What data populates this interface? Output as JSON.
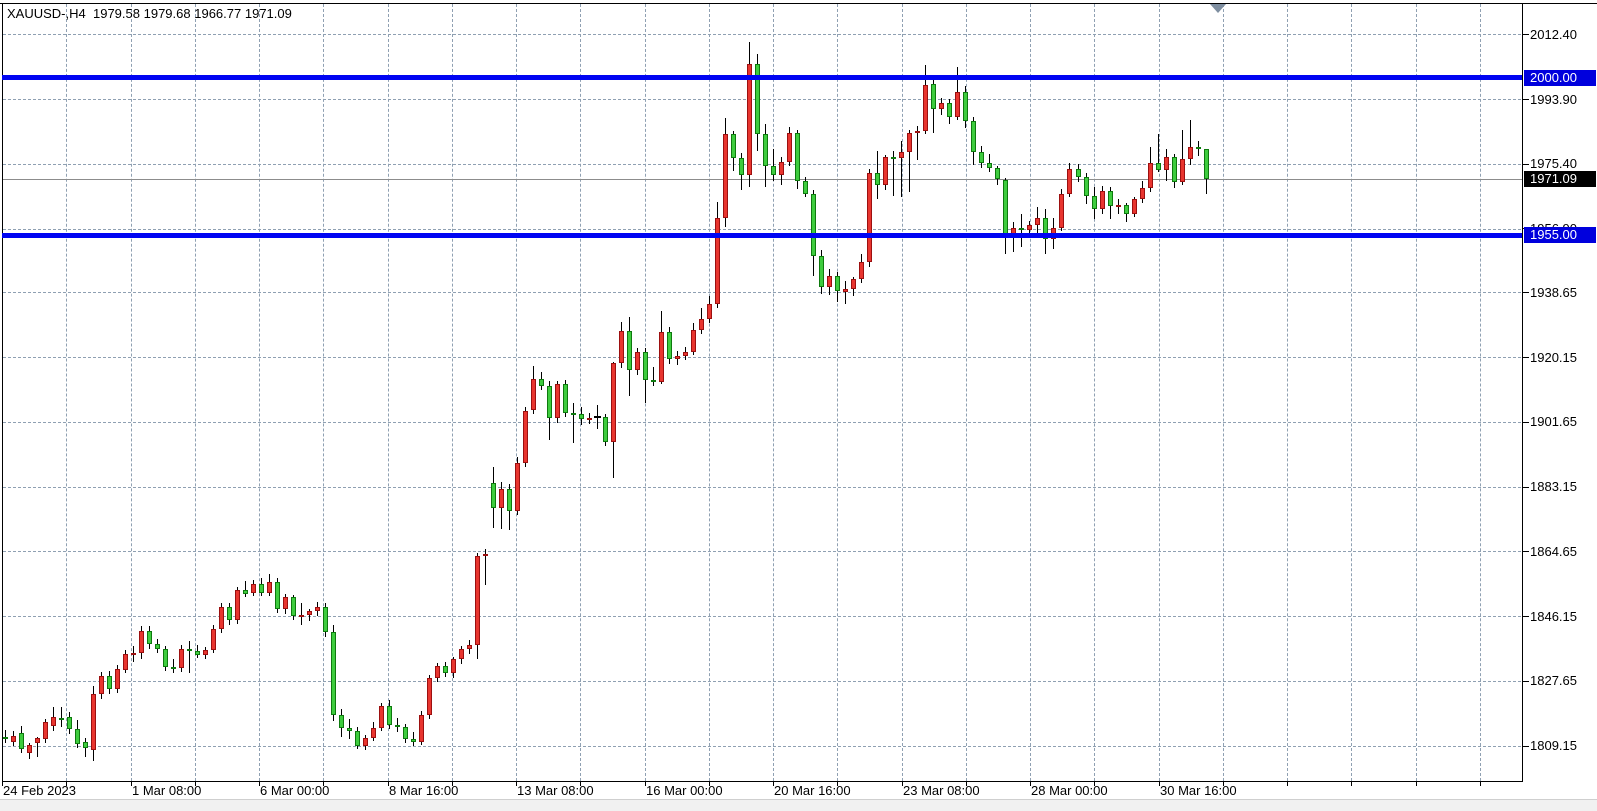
{
  "header": {
    "symbol_period": "XAUUSD-,H4",
    "open": "1979.58",
    "high": "1979.68",
    "low": "1966.77",
    "close": "1971.09"
  },
  "colors": {
    "background": "#ffffff",
    "bull_body": "#e8352f",
    "bull_border": "#9c1010",
    "bear_body": "#3ecc3e",
    "bear_border": "#0e7a0e",
    "wick": "#000000",
    "grid": "#8fa0b2",
    "level_line": "#0004f2",
    "level_chip_bg": "#0000dd",
    "current_chip_bg": "#000000",
    "current_line": "#8c8c8c",
    "axis_text": "#000000",
    "chip_text": "#ffffff",
    "shift_marker": "#7e8ea0"
  },
  "price_axis": {
    "ticks": [
      2012.4,
      1993.9,
      1975.4,
      1956.9,
      1938.65,
      1920.15,
      1901.65,
      1883.15,
      1864.65,
      1846.15,
      1827.65,
      1809.15
    ]
  },
  "time_axis": {
    "labels": [
      "24 Feb 2023",
      "1 Mar 08:00",
      "6 Mar 00:00",
      "8 Mar 16:00",
      "13 Mar 08:00",
      "16 Mar 00:00",
      "20 Mar 16:00",
      "23 Mar 08:00",
      "28 Mar 00:00",
      "30 Mar 16:00"
    ]
  },
  "levels": [
    {
      "price": 2000.0,
      "label": "2000.00"
    },
    {
      "price": 1955.0,
      "label": "1955.00"
    }
  ],
  "current": {
    "price": 1971.09,
    "label": "1971.09"
  },
  "chart_data": {
    "type": "candlestick",
    "title": "XAUUSD- H4",
    "xlabel": "",
    "ylabel": "",
    "ylim": [
      1799.0,
      2021.3
    ],
    "grid": "dashed",
    "x_tick_labels": [
      "24 Feb 2023",
      "1 Mar 08:00",
      "6 Mar 00:00",
      "8 Mar 16:00",
      "13 Mar 08:00",
      "16 Mar 00:00",
      "20 Mar 16:00",
      "23 Mar 08:00",
      "28 Mar 00:00",
      "30 Mar 16:00"
    ],
    "y_tick_values": [
      2012.4,
      1993.9,
      1975.4,
      1956.9,
      1938.65,
      1920.15,
      1901.65,
      1883.15,
      1864.65,
      1846.15,
      1827.65,
      1809.15
    ],
    "horizontal_levels": [
      2000.0,
      1955.0
    ],
    "last_price": 1971.09,
    "ohlc": [
      [
        1811.6,
        1813.7,
        1809.9,
        1811.2
      ],
      [
        1810.3,
        1813.4,
        1809.1,
        1812.0
      ],
      [
        1812.8,
        1814.8,
        1807.0,
        1808.2
      ],
      [
        1806.9,
        1810.0,
        1805.4,
        1809.4
      ],
      [
        1809.8,
        1811.6,
        1805.8,
        1811.2
      ],
      [
        1810.9,
        1816.9,
        1810.0,
        1815.8
      ],
      [
        1814.6,
        1820.1,
        1813.2,
        1817.2
      ],
      [
        1817.0,
        1820.1,
        1814.6,
        1816.4
      ],
      [
        1817.2,
        1818.9,
        1812.5,
        1813.9
      ],
      [
        1813.9,
        1816.6,
        1808.4,
        1809.6
      ],
      [
        1810.3,
        1811.2,
        1805.9,
        1808.5
      ],
      [
        1807.9,
        1826.1,
        1804.7,
        1823.8
      ],
      [
        1823.8,
        1830.2,
        1822.5,
        1829.1
      ],
      [
        1829.1,
        1830.5,
        1823.9,
        1825.2
      ],
      [
        1825.2,
        1832.2,
        1824.3,
        1831.0
      ],
      [
        1830.8,
        1836.5,
        1829.9,
        1835.3
      ],
      [
        1835.3,
        1837.6,
        1833.0,
        1835.7
      ],
      [
        1835.7,
        1843.2,
        1834.0,
        1842.0
      ],
      [
        1842.0,
        1843.4,
        1836.8,
        1838.2
      ],
      [
        1838.2,
        1839.5,
        1835.5,
        1836.7
      ],
      [
        1836.7,
        1837.5,
        1830.5,
        1831.7
      ],
      [
        1831.7,
        1834.0,
        1830.0,
        1831.2
      ],
      [
        1831.2,
        1837.8,
        1830.3,
        1836.7
      ],
      [
        1836.7,
        1839.1,
        1830.0,
        1836.2
      ],
      [
        1836.2,
        1837.8,
        1834.2,
        1835.0
      ],
      [
        1835.0,
        1837.3,
        1833.8,
        1836.5
      ],
      [
        1836.5,
        1843.6,
        1835.6,
        1842.5
      ],
      [
        1842.5,
        1849.8,
        1841.4,
        1848.7
      ],
      [
        1848.7,
        1849.9,
        1843.5,
        1844.9
      ],
      [
        1844.9,
        1854.4,
        1843.8,
        1853.5
      ],
      [
        1853.5,
        1856.1,
        1851.5,
        1852.6
      ],
      [
        1852.6,
        1856.4,
        1851.8,
        1855.4
      ],
      [
        1855.4,
        1857.0,
        1851.9,
        1852.8
      ],
      [
        1852.8,
        1858.2,
        1852.0,
        1855.9
      ],
      [
        1855.9,
        1857.0,
        1847.0,
        1848.1
      ],
      [
        1848.1,
        1852.6,
        1846.9,
        1851.6
      ],
      [
        1851.6,
        1852.3,
        1845.0,
        1846.1
      ],
      [
        1846.1,
        1849.9,
        1843.6,
        1846.6
      ],
      [
        1846.6,
        1848.3,
        1844.8,
        1847.5
      ],
      [
        1847.5,
        1850.2,
        1846.3,
        1848.8
      ],
      [
        1848.8,
        1849.9,
        1840.3,
        1841.5
      ],
      [
        1841.5,
        1843.5,
        1816.2,
        1818.0
      ],
      [
        1818.0,
        1819.6,
        1811.7,
        1814.1
      ],
      [
        1814.1,
        1816.9,
        1811.2,
        1813.4
      ],
      [
        1813.4,
        1814.4,
        1808.2,
        1808.9
      ],
      [
        1808.9,
        1812.2,
        1807.8,
        1811.3
      ],
      [
        1811.3,
        1816.0,
        1810.4,
        1814.2
      ],
      [
        1814.2,
        1821.3,
        1813.3,
        1820.4
      ],
      [
        1820.4,
        1822.3,
        1814.0,
        1815.1
      ],
      [
        1815.1,
        1817.0,
        1812.9,
        1814.5
      ],
      [
        1814.5,
        1815.2,
        1809.8,
        1811.0
      ],
      [
        1811.0,
        1813.0,
        1808.9,
        1810.2
      ],
      [
        1810.2,
        1819.0,
        1809.4,
        1817.9
      ],
      [
        1817.9,
        1829.3,
        1816.8,
        1828.6
      ],
      [
        1828.6,
        1832.8,
        1827.4,
        1831.9
      ],
      [
        1831.9,
        1833.0,
        1828.8,
        1829.8
      ],
      [
        1829.8,
        1834.6,
        1828.6,
        1833.8
      ],
      [
        1833.8,
        1837.5,
        1832.5,
        1836.7
      ],
      [
        1836.7,
        1839.4,
        1835.4,
        1837.8
      ],
      [
        1837.8,
        1864.2,
        1834.0,
        1863.2
      ],
      [
        1863.2,
        1865.3,
        1855.0,
        1864.0
      ],
      [
        1884.1,
        1888.9,
        1871.3,
        1877.0
      ],
      [
        1877.0,
        1884.6,
        1871.0,
        1882.4
      ],
      [
        1882.4,
        1883.8,
        1870.8,
        1876.3
      ],
      [
        1876.3,
        1891.7,
        1875.0,
        1890.0
      ],
      [
        1890.0,
        1906.0,
        1888.6,
        1904.9
      ],
      [
        1904.9,
        1917.5,
        1903.8,
        1913.8
      ],
      [
        1913.8,
        1915.9,
        1910.7,
        1911.9
      ],
      [
        1911.9,
        1913.2,
        1896.5,
        1902.7
      ],
      [
        1902.7,
        1913.4,
        1901.2,
        1912.5
      ],
      [
        1912.5,
        1913.6,
        1903.0,
        1904.3
      ],
      [
        1904.3,
        1907.0,
        1895.6,
        1903.9
      ],
      [
        1903.9,
        1905.9,
        1900.9,
        1902.4
      ],
      [
        1902.4,
        1904.3,
        1901.1,
        1902.8
      ],
      [
        1902.8,
        1906.6,
        1899.5,
        1903.0
      ],
      [
        1903.0,
        1904.0,
        1894.8,
        1896.0
      ],
      [
        1896.0,
        1918.9,
        1885.6,
        1918.4
      ],
      [
        1918.4,
        1930.3,
        1916.9,
        1927.5
      ],
      [
        1927.5,
        1931.5,
        1908.9,
        1916.5
      ],
      [
        1916.5,
        1922.9,
        1915.2,
        1921.7
      ],
      [
        1921.7,
        1922.8,
        1907.0,
        1913.6
      ],
      [
        1913.6,
        1917.2,
        1911.9,
        1913.1
      ],
      [
        1913.1,
        1933.2,
        1912.4,
        1927.2
      ],
      [
        1927.2,
        1928.9,
        1918.3,
        1919.6
      ],
      [
        1919.6,
        1922.0,
        1917.9,
        1920.5
      ],
      [
        1920.5,
        1923.1,
        1919.3,
        1921.7
      ],
      [
        1921.7,
        1929.8,
        1920.6,
        1927.9
      ],
      [
        1927.9,
        1934.1,
        1926.8,
        1931.0
      ],
      [
        1931.0,
        1937.7,
        1929.8,
        1935.2
      ],
      [
        1935.2,
        1964.5,
        1934.2,
        1959.8
      ],
      [
        1959.8,
        1988.5,
        1957.2,
        1983.9
      ],
      [
        1983.9,
        1984.9,
        1973.4,
        1977.1
      ],
      [
        1977.1,
        1978.5,
        1967.9,
        1972.1
      ],
      [
        1972.1,
        2010.2,
        1968.7,
        2003.9
      ],
      [
        2003.9,
        2006.8,
        1979.0,
        1983.9
      ],
      [
        1983.9,
        1986.9,
        1968.7,
        1974.9
      ],
      [
        1974.9,
        1979.5,
        1970.4,
        1972.3
      ],
      [
        1972.3,
        1977.3,
        1969.3,
        1975.8
      ],
      [
        1975.8,
        1985.8,
        1974.6,
        1984.1
      ],
      [
        1984.1,
        1985.0,
        1968.2,
        1970.4
      ],
      [
        1970.4,
        1971.6,
        1965.9,
        1966.8
      ],
      [
        1966.8,
        1968.0,
        1943.4,
        1949.1
      ],
      [
        1949.1,
        1950.9,
        1938.2,
        1940.1
      ],
      [
        1940.1,
        1945.3,
        1938.0,
        1943.4
      ],
      [
        1943.4,
        1944.6,
        1935.8,
        1938.9
      ],
      [
        1938.9,
        1942.0,
        1935.3,
        1939.6
      ],
      [
        1939.6,
        1943.0,
        1937.5,
        1942.5
      ],
      [
        1942.5,
        1949.6,
        1941.3,
        1947.2
      ],
      [
        1947.2,
        1974.0,
        1946.0,
        1972.8
      ],
      [
        1972.8,
        1979.1,
        1965.4,
        1969.3
      ],
      [
        1969.3,
        1978.0,
        1968.0,
        1977.2
      ],
      [
        1977.2,
        1979.1,
        1966.3,
        1976.9
      ],
      [
        1976.9,
        1982.0,
        1965.8,
        1978.7
      ],
      [
        1978.7,
        1985.0,
        1967.2,
        1984.2
      ],
      [
        1984.2,
        1986.2,
        1976.5,
        1984.7
      ],
      [
        1984.7,
        2003.6,
        1983.9,
        1997.9
      ],
      [
        1998.2,
        1999.9,
        1984.2,
        1990.9
      ],
      [
        1990.9,
        1994.2,
        1989.4,
        1992.8
      ],
      [
        1992.8,
        1994.0,
        1986.8,
        1988.7
      ],
      [
        1988.7,
        2003.1,
        1987.9,
        1996.0
      ],
      [
        1996.0,
        1997.5,
        1985.5,
        1987.7
      ],
      [
        1987.7,
        1988.8,
        1974.9,
        1978.7
      ],
      [
        1978.7,
        1980.5,
        1974.1,
        1975.6
      ],
      [
        1975.6,
        1978.2,
        1972.9,
        1974.3
      ],
      [
        1974.3,
        1974.9,
        1969.4,
        1970.9
      ],
      [
        1970.9,
        1971.2,
        1949.6,
        1954.4
      ],
      [
        1954.4,
        1958.8,
        1950.1,
        1957.0
      ],
      [
        1957.0,
        1961.0,
        1951.5,
        1956.5
      ],
      [
        1956.5,
        1959.1,
        1954.4,
        1957.9
      ],
      [
        1957.9,
        1963.0,
        1954.8,
        1959.8
      ],
      [
        1959.8,
        1962.5,
        1949.6,
        1953.9
      ],
      [
        1953.9,
        1960.0,
        1951.0,
        1957.0
      ],
      [
        1957.0,
        1968.2,
        1956.2,
        1966.8
      ],
      [
        1966.8,
        1975.6,
        1965.8,
        1973.9
      ],
      [
        1973.9,
        1975.3,
        1970.1,
        1971.5
      ],
      [
        1971.5,
        1972.8,
        1964.0,
        1966.3
      ],
      [
        1966.3,
        1968.7,
        1959.6,
        1962.4
      ],
      [
        1962.4,
        1969.0,
        1960.9,
        1967.7
      ],
      [
        1967.7,
        1968.8,
        1959.6,
        1963.2
      ],
      [
        1963.2,
        1965.3,
        1961.0,
        1963.5
      ],
      [
        1963.5,
        1964.2,
        1958.7,
        1961.1
      ],
      [
        1961.1,
        1966.0,
        1960.2,
        1965.3
      ],
      [
        1965.3,
        1970.6,
        1964.3,
        1968.5
      ],
      [
        1968.5,
        1980.1,
        1967.4,
        1975.5
      ],
      [
        1975.5,
        1984.0,
        1972.9,
        1973.6
      ],
      [
        1973.6,
        1979.6,
        1970.6,
        1977.2
      ],
      [
        1977.2,
        1978.3,
        1968.5,
        1970.1
      ],
      [
        1970.1,
        1985.1,
        1969.4,
        1976.8
      ],
      [
        1976.8,
        1987.9,
        1975.0,
        1980.3
      ],
      [
        1980.3,
        1982.0,
        1977.7,
        1979.5
      ],
      [
        1979.58,
        1979.68,
        1966.77,
        1971.09
      ]
    ]
  }
}
